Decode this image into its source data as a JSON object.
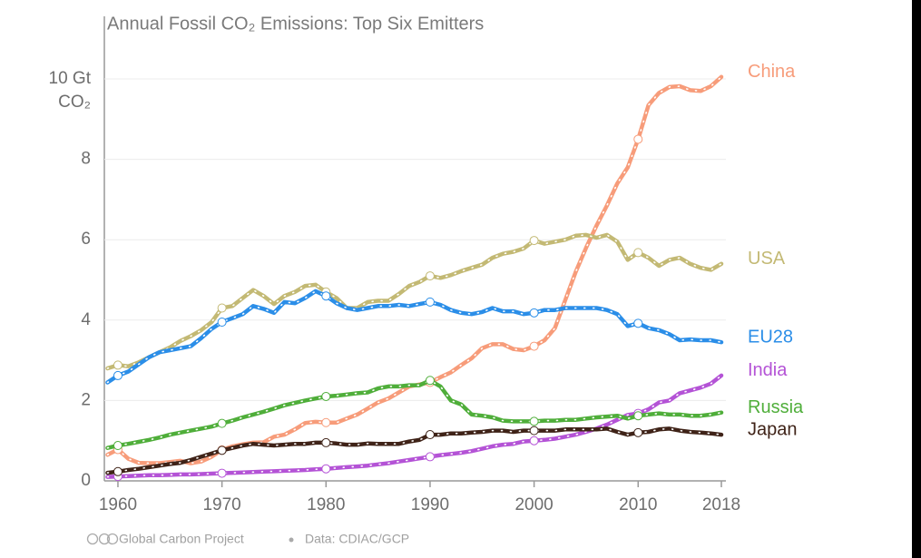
{
  "chart_data": {
    "type": "line",
    "title": "Annual Fossil CO₂ Emissions: Top Six Emitters",
    "y_unit": "CO₂",
    "source": "Global Carbon Project",
    "data_note": "Data: CDIAC/GCP",
    "grid": true,
    "xlim": [
      1959,
      2018
    ],
    "xticks": [
      1960,
      1970,
      1980,
      1990,
      2000,
      2010,
      2018
    ],
    "ylim": [
      0,
      10
    ],
    "yticks": [
      0,
      2,
      4,
      6,
      8,
      {
        "value": 10,
        "label": "10 Gt"
      }
    ],
    "x": [
      1959,
      1960,
      1961,
      1962,
      1963,
      1964,
      1965,
      1966,
      1967,
      1968,
      1969,
      1970,
      1971,
      1972,
      1973,
      1974,
      1975,
      1976,
      1977,
      1978,
      1979,
      1980,
      1981,
      1982,
      1983,
      1984,
      1985,
      1986,
      1987,
      1988,
      1989,
      1990,
      1991,
      1992,
      1993,
      1994,
      1995,
      1996,
      1997,
      1998,
      1999,
      2000,
      2001,
      2002,
      2003,
      2004,
      2005,
      2006,
      2007,
      2008,
      2009,
      2010,
      2011,
      2012,
      2013,
      2014,
      2015,
      2016,
      2017,
      2018
    ],
    "series": [
      {
        "name": "China",
        "color": "#f79c7a",
        "values": [
          0.65,
          0.78,
          0.55,
          0.45,
          0.44,
          0.44,
          0.47,
          0.5,
          0.44,
          0.48,
          0.6,
          0.77,
          0.86,
          0.91,
          0.95,
          0.96,
          1.1,
          1.15,
          1.28,
          1.44,
          1.47,
          1.45,
          1.45,
          1.55,
          1.65,
          1.8,
          1.95,
          2.05,
          2.2,
          2.35,
          2.4,
          2.45,
          2.58,
          2.7,
          2.88,
          3.05,
          3.3,
          3.4,
          3.4,
          3.28,
          3.25,
          3.35,
          3.5,
          3.8,
          4.5,
          5.2,
          5.8,
          6.35,
          6.85,
          7.4,
          7.8,
          8.5,
          9.35,
          9.65,
          9.8,
          9.82,
          9.72,
          9.7,
          9.82,
          10.05
        ]
      },
      {
        "name": "USA",
        "color": "#c3b974",
        "values": [
          2.8,
          2.88,
          2.85,
          2.95,
          3.08,
          3.2,
          3.32,
          3.48,
          3.6,
          3.75,
          3.95,
          4.3,
          4.35,
          4.55,
          4.75,
          4.6,
          4.4,
          4.6,
          4.7,
          4.85,
          4.88,
          4.7,
          4.55,
          4.3,
          4.3,
          4.45,
          4.48,
          4.48,
          4.65,
          4.85,
          4.95,
          5.1,
          5.05,
          5.12,
          5.22,
          5.3,
          5.38,
          5.55,
          5.65,
          5.7,
          5.78,
          5.98,
          5.9,
          5.95,
          6.0,
          6.1,
          6.12,
          6.05,
          6.12,
          5.95,
          5.5,
          5.68,
          5.55,
          5.35,
          5.5,
          5.55,
          5.4,
          5.3,
          5.25,
          5.4
        ]
      },
      {
        "name": "EU28",
        "color": "#2b8ee8",
        "values": [
          2.45,
          2.62,
          2.72,
          2.9,
          3.08,
          3.2,
          3.25,
          3.3,
          3.35,
          3.55,
          3.78,
          3.95,
          4.05,
          4.15,
          4.35,
          4.28,
          4.18,
          4.45,
          4.42,
          4.55,
          4.72,
          4.6,
          4.42,
          4.3,
          4.25,
          4.3,
          4.35,
          4.35,
          4.38,
          4.35,
          4.4,
          4.45,
          4.38,
          4.25,
          4.18,
          4.15,
          4.2,
          4.3,
          4.22,
          4.22,
          4.15,
          4.18,
          4.25,
          4.25,
          4.3,
          4.3,
          4.3,
          4.3,
          4.25,
          4.15,
          3.85,
          3.92,
          3.8,
          3.75,
          3.65,
          3.5,
          3.52,
          3.5,
          3.5,
          3.45
        ]
      },
      {
        "name": "India",
        "color": "#b453d6",
        "values": [
          0.1,
          0.11,
          0.12,
          0.13,
          0.14,
          0.14,
          0.15,
          0.16,
          0.16,
          0.17,
          0.18,
          0.19,
          0.2,
          0.21,
          0.22,
          0.23,
          0.24,
          0.25,
          0.26,
          0.27,
          0.29,
          0.3,
          0.32,
          0.34,
          0.36,
          0.38,
          0.41,
          0.44,
          0.48,
          0.52,
          0.56,
          0.6,
          0.64,
          0.67,
          0.7,
          0.74,
          0.8,
          0.86,
          0.9,
          0.92,
          0.98,
          1.0,
          1.02,
          1.05,
          1.1,
          1.15,
          1.22,
          1.3,
          1.4,
          1.52,
          1.64,
          1.68,
          1.78,
          1.95,
          2.0,
          2.18,
          2.25,
          2.32,
          2.42,
          2.62
        ]
      },
      {
        "name": "Russia",
        "color": "#4fae3a",
        "values": [
          0.82,
          0.88,
          0.92,
          0.97,
          1.02,
          1.08,
          1.15,
          1.2,
          1.25,
          1.3,
          1.35,
          1.43,
          1.5,
          1.58,
          1.65,
          1.72,
          1.8,
          1.88,
          1.94,
          2.0,
          2.05,
          2.1,
          2.12,
          2.15,
          2.18,
          2.2,
          2.3,
          2.35,
          2.35,
          2.38,
          2.38,
          2.5,
          2.35,
          2.0,
          1.9,
          1.65,
          1.62,
          1.58,
          1.5,
          1.48,
          1.48,
          1.48,
          1.5,
          1.5,
          1.52,
          1.52,
          1.55,
          1.58,
          1.6,
          1.62,
          1.55,
          1.62,
          1.65,
          1.68,
          1.65,
          1.65,
          1.62,
          1.62,
          1.65,
          1.7
        ]
      },
      {
        "name": "Japan",
        "color": "#3f2318",
        "values": [
          0.2,
          0.23,
          0.27,
          0.3,
          0.34,
          0.38,
          0.42,
          0.45,
          0.52,
          0.6,
          0.68,
          0.76,
          0.82,
          0.88,
          0.92,
          0.9,
          0.88,
          0.9,
          0.92,
          0.92,
          0.95,
          0.95,
          0.93,
          0.9,
          0.9,
          0.93,
          0.92,
          0.92,
          0.92,
          0.98,
          1.02,
          1.15,
          1.15,
          1.18,
          1.18,
          1.2,
          1.22,
          1.25,
          1.25,
          1.22,
          1.25,
          1.25,
          1.25,
          1.25,
          1.28,
          1.28,
          1.28,
          1.28,
          1.3,
          1.22,
          1.15,
          1.2,
          1.22,
          1.28,
          1.3,
          1.25,
          1.22,
          1.2,
          1.18,
          1.15
        ]
      }
    ]
  }
}
